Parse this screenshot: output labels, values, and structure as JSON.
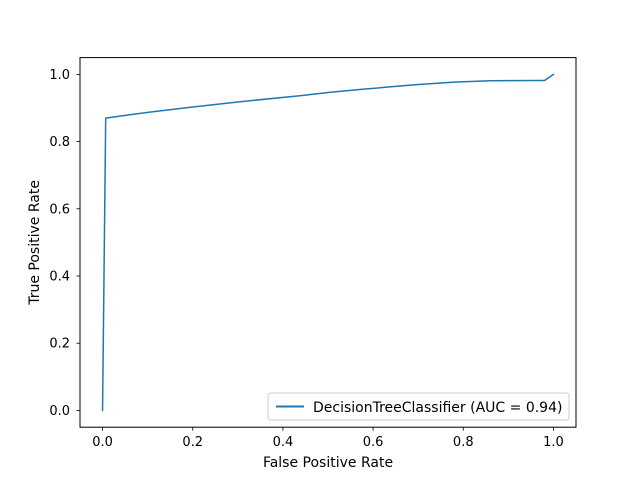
{
  "chart_data": {
    "type": "line",
    "title": "",
    "xlabel": "False Positive Rate",
    "ylabel": "True Positive Rate",
    "xlim": [
      -0.05,
      1.05
    ],
    "ylim": [
      -0.05,
      1.05
    ],
    "xticks": [
      0.0,
      0.2,
      0.4,
      0.6,
      0.8,
      1.0
    ],
    "xtick_labels": [
      "0.0",
      "0.2",
      "0.4",
      "0.6",
      "0.8",
      "1.0"
    ],
    "yticks": [
      0.0,
      0.2,
      0.4,
      0.6,
      0.8,
      1.0
    ],
    "ytick_labels": [
      "0.0",
      "0.2",
      "0.4",
      "0.6",
      "0.8",
      "1.0"
    ],
    "grid": false,
    "legend_position": "lower-right",
    "series": [
      {
        "name": "DecisionTreeClassifier (AUC = 0.94)",
        "color": "#1f77b4",
        "x": [
          0.0,
          0.007,
          0.1,
          0.2,
          0.3,
          0.44,
          0.5,
          0.57,
          0.63,
          0.7,
          0.78,
          0.86,
          0.97,
          0.98,
          1.0
        ],
        "y": [
          0.0,
          0.87,
          0.887,
          0.903,
          0.918,
          0.937,
          0.946,
          0.955,
          0.962,
          0.97,
          0.977,
          0.981,
          0.982,
          0.982,
          1.0
        ]
      }
    ]
  }
}
